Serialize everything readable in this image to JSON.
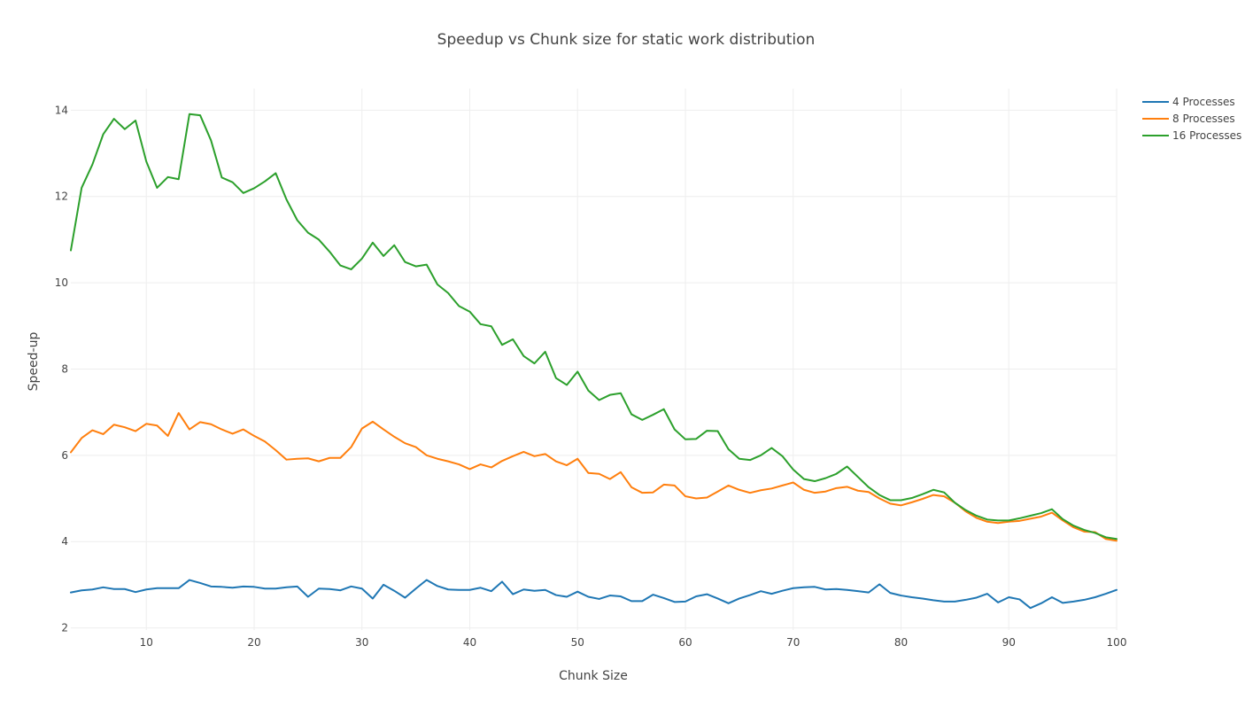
{
  "chart_data": {
    "type": "line",
    "title": "Speedup vs Chunk size for static work distribution",
    "xlabel": "Chunk Size",
    "ylabel": "Speed-up",
    "xlim": [
      3,
      100
    ],
    "ylim": [
      1.95,
      14.5
    ],
    "x_ticks": [
      10,
      20,
      30,
      40,
      50,
      60,
      70,
      80,
      90,
      100
    ],
    "y_ticks": [
      2,
      4,
      6,
      8,
      10,
      12,
      14
    ],
    "grid": true,
    "legend_position": "top-right",
    "x": [
      3,
      4,
      5,
      6,
      7,
      8,
      9,
      10,
      11,
      12,
      13,
      14,
      15,
      16,
      17,
      18,
      19,
      20,
      21,
      22,
      23,
      24,
      25,
      26,
      27,
      28,
      29,
      30,
      31,
      32,
      33,
      34,
      35,
      36,
      37,
      38,
      39,
      40,
      41,
      42,
      43,
      44,
      45,
      46,
      47,
      48,
      49,
      50,
      51,
      52,
      53,
      54,
      55,
      56,
      57,
      58,
      59,
      60,
      61,
      62,
      63,
      64,
      65,
      66,
      67,
      68,
      69,
      70,
      71,
      72,
      73,
      74,
      75,
      76,
      77,
      78,
      79,
      80,
      81,
      82,
      83,
      84,
      85,
      86,
      87,
      88,
      89,
      90,
      91,
      92,
      93,
      94,
      95,
      96,
      97,
      98,
      99,
      100
    ],
    "series": [
      {
        "name": "4 Processes",
        "color": "#1f77b4",
        "values": [
          2.82,
          2.87,
          2.89,
          2.94,
          2.9,
          2.9,
          2.83,
          2.89,
          2.92,
          2.92,
          2.92,
          3.11,
          3.04,
          2.96,
          2.95,
          2.93,
          2.96,
          2.95,
          2.91,
          2.91,
          2.94,
          2.96,
          2.72,
          2.91,
          2.9,
          2.87,
          2.96,
          2.91,
          2.68,
          3.0,
          2.86,
          2.7,
          2.91,
          3.11,
          2.97,
          2.89,
          2.88,
          2.88,
          2.93,
          2.85,
          3.07,
          2.78,
          2.89,
          2.86,
          2.88,
          2.76,
          2.72,
          2.84,
          2.72,
          2.67,
          2.75,
          2.73,
          2.62,
          2.62,
          2.77,
          2.69,
          2.6,
          2.61,
          2.73,
          2.78,
          2.68,
          2.57,
          2.68,
          2.76,
          2.85,
          2.79,
          2.86,
          2.92,
          2.94,
          2.95,
          2.89,
          2.9,
          2.88,
          2.85,
          2.82,
          3.01,
          2.81,
          2.75,
          2.71,
          2.68,
          2.64,
          2.61,
          2.61,
          2.65,
          2.7,
          2.79,
          2.59,
          2.71,
          2.66,
          2.46,
          2.57,
          2.71,
          2.58,
          2.61,
          2.65,
          2.71,
          2.79,
          2.88
        ]
      },
      {
        "name": "8 Processes",
        "color": "#ff7f0e",
        "values": [
          6.07,
          6.4,
          6.58,
          6.49,
          6.71,
          6.65,
          6.56,
          6.73,
          6.69,
          6.45,
          6.98,
          6.6,
          6.77,
          6.72,
          6.6,
          6.5,
          6.6,
          6.45,
          6.32,
          6.12,
          5.9,
          5.92,
          5.93,
          5.86,
          5.94,
          5.94,
          6.19,
          6.62,
          6.78,
          6.6,
          6.43,
          6.28,
          6.19,
          6.0,
          5.92,
          5.86,
          5.79,
          5.68,
          5.79,
          5.72,
          5.87,
          5.98,
          6.08,
          5.98,
          6.03,
          5.86,
          5.77,
          5.92,
          5.59,
          5.57,
          5.45,
          5.61,
          5.26,
          5.13,
          5.14,
          5.32,
          5.3,
          5.05,
          5.0,
          5.02,
          5.16,
          5.3,
          5.2,
          5.13,
          5.19,
          5.23,
          5.3,
          5.37,
          5.2,
          5.13,
          5.16,
          5.24,
          5.27,
          5.18,
          5.15,
          5.0,
          4.88,
          4.84,
          4.91,
          4.99,
          5.08,
          5.05,
          4.9,
          4.7,
          4.55,
          4.46,
          4.43,
          4.46,
          4.48,
          4.53,
          4.58,
          4.67,
          4.49,
          4.33,
          4.23,
          4.22,
          4.06,
          4.02
        ]
      },
      {
        "name": "16 Processes",
        "color": "#2ca02c",
        "values": [
          10.75,
          12.2,
          12.74,
          13.44,
          13.8,
          13.56,
          13.76,
          12.81,
          12.2,
          12.45,
          12.4,
          13.91,
          13.88,
          13.3,
          12.44,
          12.33,
          12.08,
          12.19,
          12.35,
          12.54,
          11.93,
          11.45,
          11.16,
          11.0,
          10.72,
          10.4,
          10.31,
          10.56,
          10.93,
          10.62,
          10.87,
          10.48,
          10.38,
          10.42,
          9.96,
          9.76,
          9.46,
          9.33,
          9.04,
          8.99,
          8.56,
          8.69,
          8.3,
          8.13,
          8.4,
          7.79,
          7.63,
          7.94,
          7.5,
          7.28,
          7.4,
          7.44,
          6.95,
          6.82,
          6.94,
          7.07,
          6.6,
          6.37,
          6.38,
          6.57,
          6.56,
          6.14,
          5.92,
          5.89,
          6.0,
          6.17,
          5.98,
          5.67,
          5.45,
          5.4,
          5.47,
          5.57,
          5.74,
          5.5,
          5.26,
          5.08,
          4.96,
          4.96,
          5.01,
          5.1,
          5.2,
          5.14,
          4.9,
          4.73,
          4.6,
          4.51,
          4.49,
          4.49,
          4.54,
          4.6,
          4.66,
          4.75,
          4.52,
          4.37,
          4.27,
          4.2,
          4.1,
          4.06
        ]
      }
    ]
  }
}
